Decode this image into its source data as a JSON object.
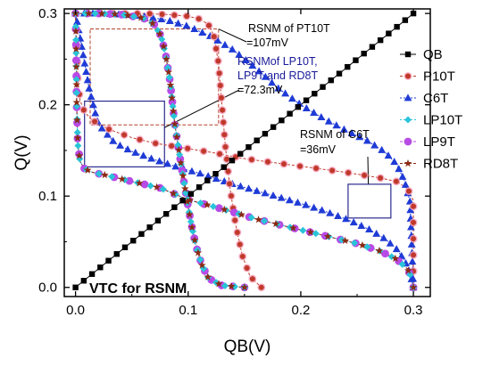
{
  "chart_data": {
    "type": "line",
    "xlabel": "QB(V)",
    "ylabel": "Q(V)",
    "xlim": [
      -0.01,
      0.315
    ],
    "ylim": [
      -0.01,
      0.305
    ],
    "xticks": [
      "0.0",
      "0.1",
      "0.2",
      "0.3"
    ],
    "yticks": [
      "0.0",
      "0.1",
      "0.2",
      "0.3"
    ],
    "grid": false,
    "legend_position": "right",
    "series": [
      {
        "name": "QB",
        "color": "#000000",
        "marker": "square",
        "x": [
          0.0,
          0.3
        ],
        "y": [
          0.0,
          0.3
        ]
      },
      {
        "name": "P10T",
        "color": "#c0392b",
        "marker": "circle",
        "x": [
          0.0,
          0.0007,
          0.0013,
          0.002,
          0.004,
          0.008,
          0.015,
          0.03,
          0.05,
          0.07,
          0.1,
          0.12,
          0.15,
          0.18,
          0.21,
          0.24,
          0.27,
          0.285,
          0.295,
          0.3,
          0.3
        ],
        "y": [
          0.3,
          0.285,
          0.255,
          0.228,
          0.205,
          0.192,
          0.183,
          0.173,
          0.164,
          0.158,
          0.152,
          0.148,
          0.141,
          0.136,
          0.131,
          0.126,
          0.12,
          0.116,
          0.108,
          0.095,
          0.0
        ]
      },
      {
        "name": "P10T",
        "color": "#c0392b",
        "marker": "circle",
        "x": [
          0.0,
          0.02,
          0.04,
          0.06,
          0.08,
          0.1,
          0.11,
          0.118,
          0.123,
          0.127,
          0.13,
          0.133,
          0.137,
          0.142,
          0.148,
          0.155,
          0.165
        ],
        "y": [
          0.3,
          0.3,
          0.3,
          0.3,
          0.299,
          0.297,
          0.294,
          0.288,
          0.275,
          0.245,
          0.2,
          0.155,
          0.11,
          0.07,
          0.035,
          0.012,
          0.0
        ]
      },
      {
        "name": "C6T",
        "color": "#1f3bd6",
        "marker": "triangle",
        "x": [
          0.0,
          0.003,
          0.007,
          0.012,
          0.02,
          0.035,
          0.05,
          0.065,
          0.08,
          0.095,
          0.11,
          0.125,
          0.14,
          0.16,
          0.18,
          0.2,
          0.22,
          0.24,
          0.26,
          0.275,
          0.285,
          0.292,
          0.297,
          0.3
        ],
        "y": [
          0.3,
          0.281,
          0.253,
          0.218,
          0.179,
          0.158,
          0.149,
          0.142,
          0.136,
          0.13,
          0.125,
          0.119,
          0.113,
          0.106,
          0.099,
          0.092,
          0.084,
          0.075,
          0.064,
          0.053,
          0.042,
          0.03,
          0.016,
          0.0
        ]
      },
      {
        "name": "C6T",
        "color": "#1f3bd6",
        "marker": "triangle",
        "x": [
          0.0,
          0.02,
          0.04,
          0.06,
          0.08,
          0.1,
          0.12,
          0.14,
          0.16,
          0.18,
          0.2,
          0.22,
          0.24,
          0.26,
          0.275,
          0.285,
          0.292,
          0.297,
          0.3
        ],
        "y": [
          0.3,
          0.3,
          0.299,
          0.297,
          0.293,
          0.286,
          0.275,
          0.26,
          0.24,
          0.218,
          0.2,
          0.185,
          0.172,
          0.16,
          0.148,
          0.135,
          0.117,
          0.094,
          0.0
        ]
      },
      {
        "name": "LP10T",
        "color": "#29c4d8",
        "marker": "diamond",
        "x": [
          0.0,
          0.0005,
          0.001,
          0.002,
          0.004,
          0.008,
          0.015,
          0.03,
          0.05,
          0.075,
          0.1,
          0.13,
          0.16,
          0.19,
          0.22,
          0.25,
          0.27,
          0.285,
          0.295,
          0.299,
          0.3
        ],
        "y": [
          0.3,
          0.26,
          0.2,
          0.157,
          0.138,
          0.13,
          0.126,
          0.122,
          0.116,
          0.109,
          0.096,
          0.086,
          0.075,
          0.066,
          0.057,
          0.048,
          0.04,
          0.031,
          0.02,
          0.008,
          0.0
        ]
      },
      {
        "name": "LP10T",
        "color": "#29c4d8",
        "marker": "diamond",
        "x": [
          0.0,
          0.02,
          0.04,
          0.06,
          0.07,
          0.076,
          0.08,
          0.084,
          0.088,
          0.093,
          0.097,
          0.1,
          0.103,
          0.107,
          0.112,
          0.118,
          0.13,
          0.15
        ],
        "y": [
          0.3,
          0.3,
          0.299,
          0.295,
          0.288,
          0.275,
          0.255,
          0.225,
          0.18,
          0.14,
          0.11,
          0.088,
          0.068,
          0.045,
          0.025,
          0.01,
          0.002,
          0.0
        ]
      },
      {
        "name": "LP9T",
        "color": "#b84ae6",
        "marker": "circle",
        "x": [
          0.0,
          0.0005,
          0.001,
          0.002,
          0.004,
          0.008,
          0.015,
          0.03,
          0.05,
          0.075,
          0.1,
          0.13,
          0.16,
          0.19,
          0.22,
          0.25,
          0.27,
          0.285,
          0.295,
          0.299,
          0.3
        ],
        "y": [
          0.3,
          0.26,
          0.2,
          0.157,
          0.138,
          0.13,
          0.126,
          0.122,
          0.116,
          0.109,
          0.096,
          0.086,
          0.075,
          0.066,
          0.057,
          0.048,
          0.04,
          0.031,
          0.02,
          0.008,
          0.0
        ]
      },
      {
        "name": "LP9T",
        "color": "#b84ae6",
        "marker": "circle",
        "x": [
          0.0,
          0.02,
          0.04,
          0.06,
          0.07,
          0.076,
          0.08,
          0.084,
          0.088,
          0.093,
          0.097,
          0.1,
          0.103,
          0.107,
          0.112,
          0.118,
          0.13,
          0.15
        ],
        "y": [
          0.3,
          0.3,
          0.299,
          0.295,
          0.288,
          0.275,
          0.255,
          0.225,
          0.18,
          0.14,
          0.11,
          0.088,
          0.068,
          0.045,
          0.025,
          0.01,
          0.002,
          0.0
        ]
      },
      {
        "name": "RD8T",
        "color": "#8b2a14",
        "marker": "star",
        "x": [
          0.0,
          0.0005,
          0.001,
          0.002,
          0.004,
          0.008,
          0.015,
          0.03,
          0.05,
          0.075,
          0.1,
          0.13,
          0.16,
          0.19,
          0.22,
          0.25,
          0.27,
          0.285,
          0.295,
          0.299,
          0.3
        ],
        "y": [
          0.3,
          0.26,
          0.2,
          0.157,
          0.138,
          0.13,
          0.126,
          0.122,
          0.116,
          0.109,
          0.096,
          0.086,
          0.075,
          0.066,
          0.057,
          0.048,
          0.04,
          0.031,
          0.02,
          0.008,
          0.0
        ]
      },
      {
        "name": "RD8T",
        "color": "#8b2a14",
        "marker": "star",
        "x": [
          0.0,
          0.02,
          0.04,
          0.06,
          0.07,
          0.076,
          0.08,
          0.084,
          0.088,
          0.093,
          0.097,
          0.1,
          0.103,
          0.107,
          0.112,
          0.118,
          0.13,
          0.15
        ],
        "y": [
          0.3,
          0.3,
          0.299,
          0.295,
          0.288,
          0.275,
          0.255,
          0.225,
          0.18,
          0.14,
          0.11,
          0.088,
          0.068,
          0.045,
          0.025,
          0.01,
          0.002,
          0.0
        ]
      }
    ],
    "annotations": {
      "pt10t": "RSNM of PT10T",
      "pt10t_value": "=107mV",
      "lp_line1": "RSNMof LP10T,",
      "lp_line2": "LP9T and RD8T",
      "lp_value": "=72.3mV",
      "c6t": "RSNM of C6T",
      "c6t_value": "=36mV",
      "vtc": "VTC for RSNM"
    }
  }
}
